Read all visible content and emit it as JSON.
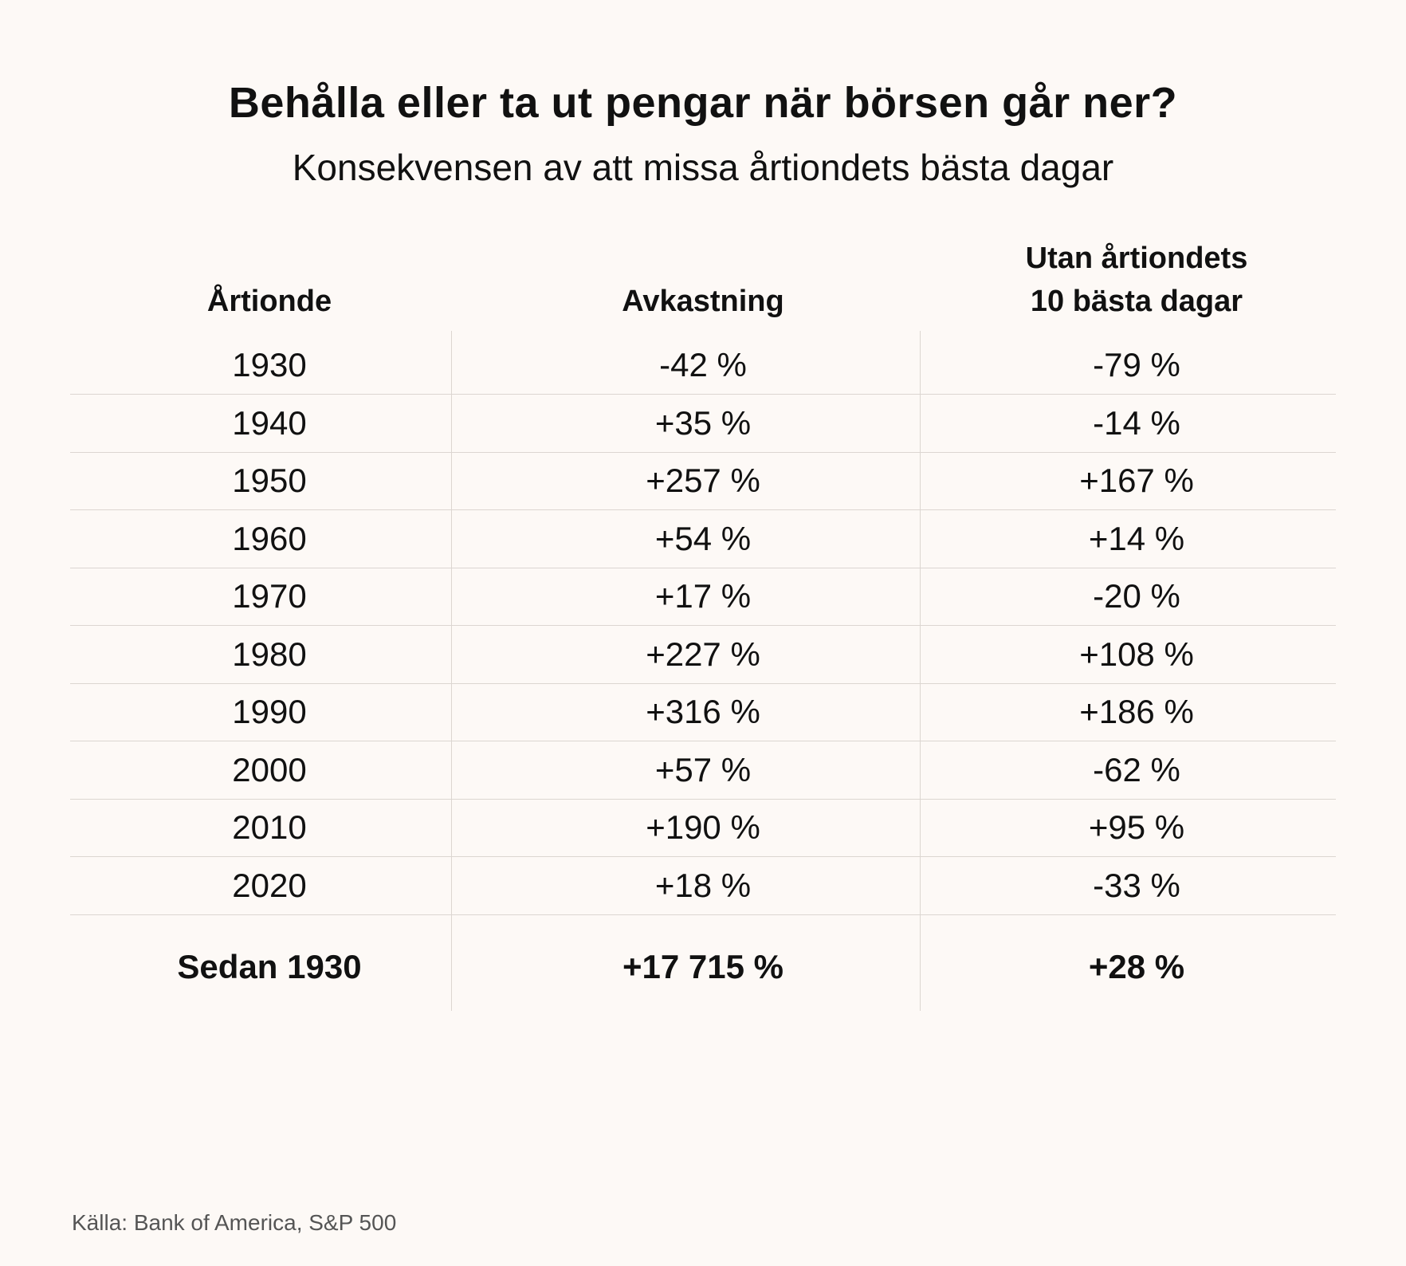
{
  "chart_data": {
    "type": "table",
    "title": "Behålla eller ta ut pengar när börsen går ner?",
    "subtitle": "Konsekvensen av att missa årtiondets bästa dagar",
    "columns": [
      "Årtionde",
      "Avkastning",
      "Utan årtiondets\n10 bästa dagar"
    ],
    "rows": [
      [
        "1930",
        "-42 %",
        "-79 %"
      ],
      [
        "1940",
        "+35 %",
        "-14 %"
      ],
      [
        "1950",
        "+257 %",
        "+167 %"
      ],
      [
        "1960",
        "+54 %",
        "+14 %"
      ],
      [
        "1970",
        "+17 %",
        "-20 %"
      ],
      [
        "1980",
        "+227 %",
        "+108 %"
      ],
      [
        "1990",
        "+316 %",
        "+186 %"
      ],
      [
        "2000",
        "+57 %",
        "-62 %"
      ],
      [
        "2010",
        "+190 %",
        "+95 %"
      ],
      [
        "2020",
        "+18 %",
        "-33 %"
      ]
    ],
    "total_row": [
      "Sedan 1930",
      "+17 715 %",
      "+28 %"
    ],
    "source": "Källa: Bank of America, S&P 500"
  },
  "colors": {
    "background": "#fdf9f6",
    "text": "#111111",
    "gridline": "#dcd6d1",
    "source_text": "#555555"
  }
}
